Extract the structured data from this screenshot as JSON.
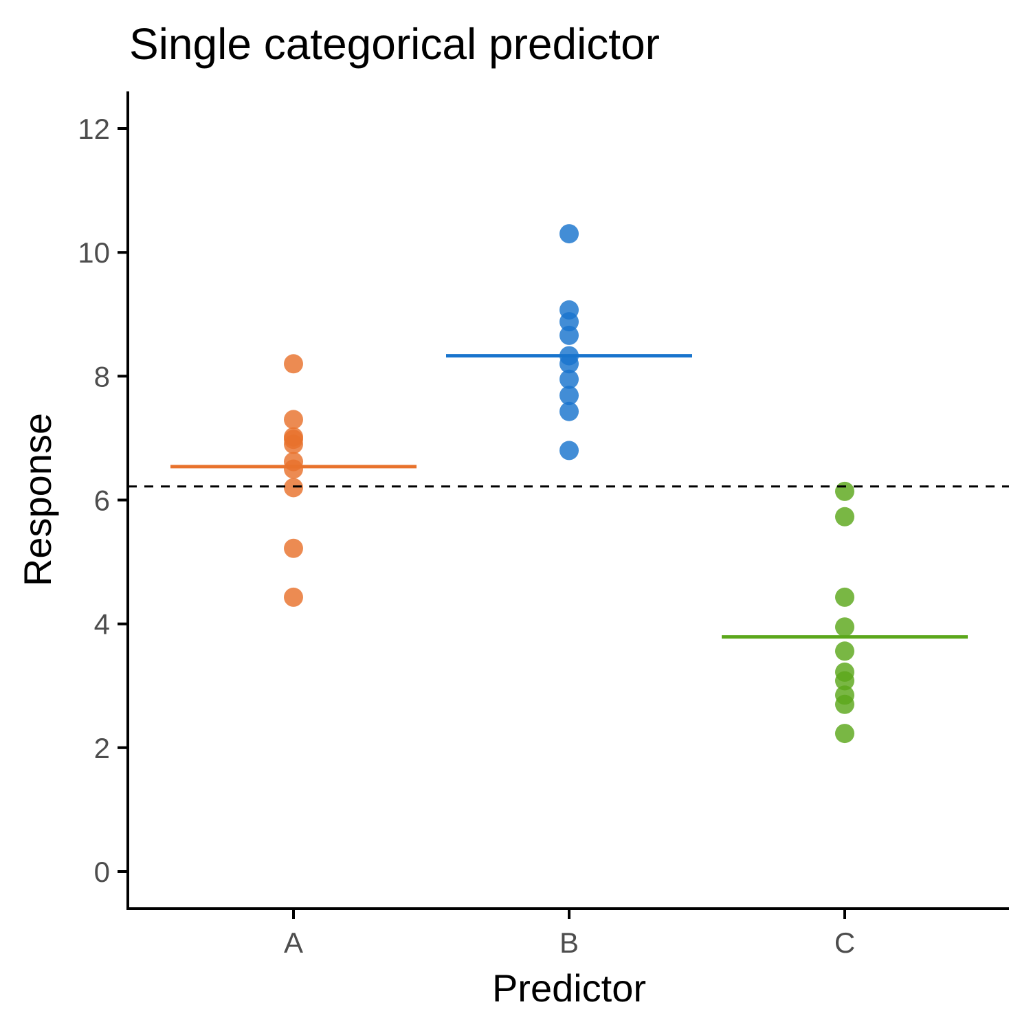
{
  "chart_data": {
    "type": "scatter",
    "title": "Single categorical predictor",
    "xlabel": "Predictor",
    "ylabel": "Response",
    "categories": [
      "A",
      "B",
      "C"
    ],
    "ylim": [
      -0.6,
      12.6
    ],
    "yticks": [
      0,
      2,
      4,
      6,
      8,
      10,
      12
    ],
    "grid": false,
    "legend": "none",
    "overall_mean": 6.22,
    "series": [
      {
        "category": "A",
        "color": "#E8722C",
        "values": [
          8.2,
          7.3,
          7.02,
          6.98,
          6.9,
          6.62,
          6.5,
          6.2,
          5.22,
          4.43
        ],
        "mean": 6.54
      },
      {
        "category": "B",
        "color": "#1874CD",
        "values": [
          10.3,
          9.07,
          8.88,
          8.66,
          8.33,
          8.2,
          7.95,
          7.69,
          7.43,
          6.8
        ],
        "mean": 8.33
      },
      {
        "category": "C",
        "color": "#5BA71B",
        "values": [
          6.14,
          5.73,
          4.43,
          3.95,
          3.56,
          3.22,
          3.08,
          2.85,
          2.7,
          2.23
        ],
        "mean": 3.79
      }
    ]
  }
}
